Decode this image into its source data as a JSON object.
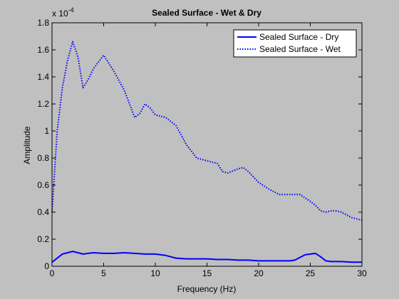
{
  "colors": {
    "figure_background": "#c0c0c0",
    "axes_background": "#c0c0c0",
    "line": "#0000ff",
    "legend_background": "#ffffff"
  },
  "chart_data": {
    "type": "line",
    "title": "Sealed Surface - Wet & Dry",
    "xlabel": "Frequency (Hz)",
    "ylabel": "Amplitude",
    "y_exponent_label": "x 10",
    "y_exponent_power": "-4",
    "xlim": [
      0,
      30
    ],
    "ylim": [
      0,
      1.8
    ],
    "xticks": [
      "0",
      "5",
      "10",
      "15",
      "20",
      "25",
      "30"
    ],
    "yticks": [
      "0",
      "0.2",
      "0.4",
      "0.6",
      "0.8",
      "1",
      "1.2",
      "1.4",
      "1.6",
      "1.8"
    ],
    "grid": false,
    "legend_position": "top-right",
    "series": [
      {
        "name": "Sealed Surface - Dry",
        "style": "solid",
        "x": [
          0,
          0.5,
          1,
          1.5,
          2,
          2.5,
          3,
          3.5,
          4,
          5,
          6,
          7,
          8,
          9,
          10,
          11,
          12,
          13,
          14,
          15,
          16,
          17,
          18,
          19,
          20,
          21,
          22,
          23,
          23.5,
          24,
          24.5,
          25,
          25.5,
          26,
          26.5,
          27,
          28,
          29,
          30
        ],
        "y": [
          0.03,
          0.06,
          0.09,
          0.1,
          0.11,
          0.1,
          0.09,
          0.095,
          0.1,
          0.095,
          0.095,
          0.1,
          0.095,
          0.09,
          0.09,
          0.08,
          0.06,
          0.055,
          0.055,
          0.055,
          0.05,
          0.05,
          0.045,
          0.045,
          0.04,
          0.04,
          0.04,
          0.04,
          0.045,
          0.065,
          0.085,
          0.09,
          0.095,
          0.07,
          0.04,
          0.035,
          0.035,
          0.03,
          0.03
        ]
      },
      {
        "name": "Sealed Surface - Wet",
        "style": "dotted",
        "x": [
          0,
          0.5,
          1,
          1.5,
          2,
          2.5,
          3,
          3.5,
          4,
          5,
          5.5,
          6,
          7,
          7.5,
          8,
          8.5,
          9,
          9.5,
          10,
          11,
          12,
          12.5,
          13,
          13.5,
          14,
          15,
          16,
          16.5,
          17,
          18,
          18.5,
          19,
          20,
          21,
          22,
          23,
          24,
          25,
          25.5,
          26,
          26.5,
          27,
          27.5,
          28,
          29,
          30
        ],
        "y": [
          0.4,
          1.0,
          1.32,
          1.52,
          1.66,
          1.55,
          1.32,
          1.38,
          1.46,
          1.56,
          1.5,
          1.44,
          1.3,
          1.2,
          1.1,
          1.13,
          1.2,
          1.17,
          1.12,
          1.1,
          1.04,
          0.97,
          0.9,
          0.85,
          0.8,
          0.78,
          0.76,
          0.7,
          0.69,
          0.72,
          0.73,
          0.7,
          0.62,
          0.57,
          0.53,
          0.53,
          0.53,
          0.48,
          0.45,
          0.41,
          0.4,
          0.41,
          0.41,
          0.4,
          0.36,
          0.34
        ]
      }
    ]
  }
}
